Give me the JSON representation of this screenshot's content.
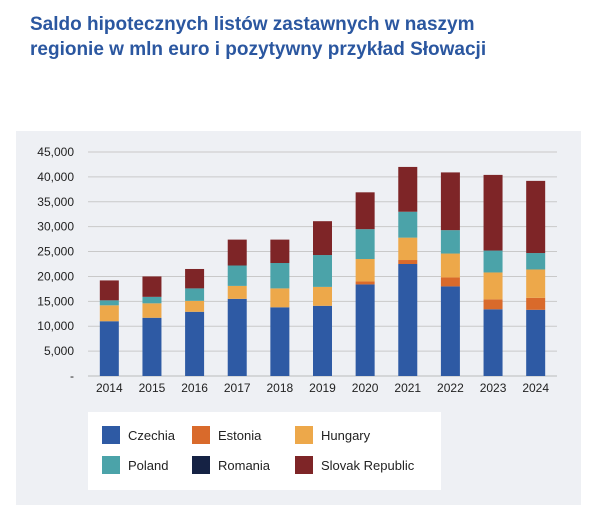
{
  "title_line1": "Saldo hipotecznych listów zastawnych w naszym",
  "title_line2": "regionie w mln euro i pozytywny przykład Słowacji",
  "chart_data": {
    "type": "bar",
    "stacked": true,
    "categories": [
      "2014",
      "2015",
      "2016",
      "2017",
      "2018",
      "2019",
      "2020",
      "2021",
      "2022",
      "2023",
      "2024"
    ],
    "ylim": [
      0,
      45000
    ],
    "yticks": [
      0,
      5000,
      10000,
      15000,
      20000,
      25000,
      30000,
      35000,
      40000,
      45000
    ],
    "ytick_labels": [
      "-",
      "5,000",
      "10,000",
      "15,000",
      "20,000",
      "25,000",
      "30,000",
      "35,000",
      "40,000",
      "45,000"
    ],
    "grid": true,
    "legend_position": "bottom",
    "series": [
      {
        "name": "Czechia",
        "color": "#2e5aa4",
        "values": [
          11000,
          11700,
          12900,
          15500,
          13800,
          14100,
          18400,
          22500,
          18000,
          13400,
          13300
        ]
      },
      {
        "name": "Estonia",
        "color": "#d96a2b",
        "values": [
          0,
          0,
          0,
          0,
          0,
          0,
          600,
          800,
          1800,
          2000,
          2400
        ]
      },
      {
        "name": "Hungary",
        "color": "#eda84a",
        "values": [
          3200,
          2900,
          2200,
          2600,
          3800,
          3800,
          4500,
          4500,
          4800,
          5400,
          5700
        ]
      },
      {
        "name": "Poland",
        "color": "#4ba3a9",
        "values": [
          1000,
          1300,
          2500,
          4100,
          5100,
          6400,
          6000,
          5200,
          4700,
          4400,
          3300
        ]
      },
      {
        "name": "Romania",
        "color": "#152244",
        "values": [
          0,
          0,
          0,
          0,
          0,
          0,
          0,
          0,
          0,
          0,
          0
        ]
      },
      {
        "name": "Slovak Republic",
        "color": "#7e2527",
        "values": [
          4000,
          4100,
          3900,
          5200,
          4700,
          6800,
          7400,
          9000,
          11600,
          15200,
          14500
        ]
      }
    ]
  },
  "legend": [
    {
      "label": "Czechia",
      "color": "#2e5aa4"
    },
    {
      "label": "Estonia",
      "color": "#d96a2b"
    },
    {
      "label": "Hungary",
      "color": "#eda84a"
    },
    {
      "label": "Poland",
      "color": "#4ba3a9"
    },
    {
      "label": "Romania",
      "color": "#152244"
    },
    {
      "label": "Slovak Republic",
      "color": "#7e2527"
    }
  ]
}
